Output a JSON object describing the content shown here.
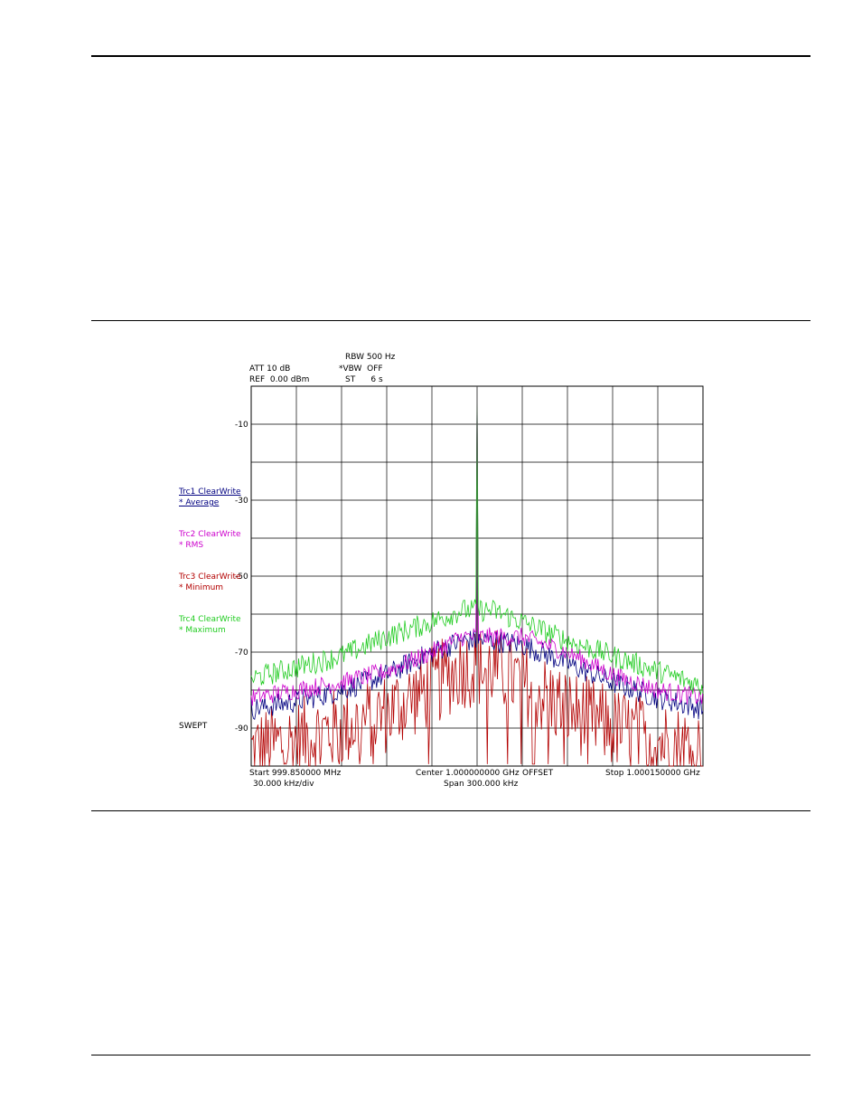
{
  "page": {
    "rules": [
      "top",
      "upper-figure",
      "lower-figure",
      "bottom"
    ]
  },
  "header": {
    "att": "ATT 10 dB",
    "ref": "REF  0.00 dBm",
    "rbw": "RBW 500 Hz",
    "vbw": "*VBW  OFF",
    "st": "ST      6 s"
  },
  "footer": {
    "start": "Start 999.850000 MHz",
    "per_div": "30.000 kHz/div",
    "center": "Center 1.000000000 GHz",
    "offset": "OFFSET",
    "span": "Span 300.000 kHz",
    "stop": "Stop 1.000150000 GHz"
  },
  "sweep_mode": "SWEPT",
  "chart_data": {
    "type": "line",
    "xlabel": "",
    "ylabel": "",
    "xlim": [
      999.85,
      1000.15
    ],
    "x_unit": "MHz",
    "ylim": [
      0,
      -100
    ],
    "y_unit": "dBm",
    "grid": true,
    "y_tick_labels": [
      "-10",
      "-30",
      "-50",
      "-70",
      "-90"
    ],
    "y_ticks": [
      -10,
      -30,
      -50,
      -70,
      -90
    ],
    "x_divisions": 10,
    "y_divisions": 10,
    "legend_position": "left",
    "carrier_x": 1000.0,
    "series": [
      {
        "name": "Trc1 ClearWrite",
        "detector": "* Average",
        "color": "#000080",
        "x": [
          999.85,
          999.88,
          999.91,
          999.94,
          999.97,
          999.99,
          1000.0,
          1000.01,
          1000.03,
          1000.06,
          1000.09,
          1000.12,
          1000.15
        ],
        "y": [
          -85,
          -83,
          -80,
          -76,
          -70,
          -67,
          -2,
          -67,
          -68,
          -73,
          -78,
          -82,
          -85
        ]
      },
      {
        "name": "Trc2 ClearWrite",
        "detector": "* RMS",
        "color": "#cc00cc",
        "x": [
          999.85,
          999.88,
          999.91,
          999.94,
          999.97,
          999.99,
          1000.0,
          1000.01,
          1000.03,
          1000.06,
          1000.09,
          1000.12,
          1000.15
        ],
        "y": [
          -82,
          -80,
          -78,
          -75,
          -70,
          -66,
          -2,
          -66,
          -66,
          -70,
          -76,
          -80,
          -82
        ]
      },
      {
        "name": "Trc3 ClearWrite",
        "detector": "* Minimum",
        "color": "#b30000",
        "x": [
          999.85,
          999.88,
          999.91,
          999.94,
          999.97,
          999.99,
          1000.0,
          1000.01,
          1000.03,
          1000.06,
          1000.09,
          1000.12,
          1000.15
        ],
        "y": [
          -96,
          -93,
          -90,
          -86,
          -79,
          -74,
          -4,
          -74,
          -78,
          -85,
          -90,
          -93,
          -96
        ]
      },
      {
        "name": "Trc4 ClearWrite",
        "detector": "* Maximum",
        "color": "#22cc22",
        "x": [
          999.85,
          999.88,
          999.91,
          999.94,
          999.97,
          999.99,
          1000.0,
          1000.01,
          1000.03,
          1000.06,
          1000.09,
          1000.12,
          1000.15
        ],
        "y": [
          -77,
          -74,
          -71,
          -66,
          -62,
          -59,
          0,
          -59,
          -62,
          -67,
          -71,
          -75,
          -79
        ]
      }
    ]
  }
}
